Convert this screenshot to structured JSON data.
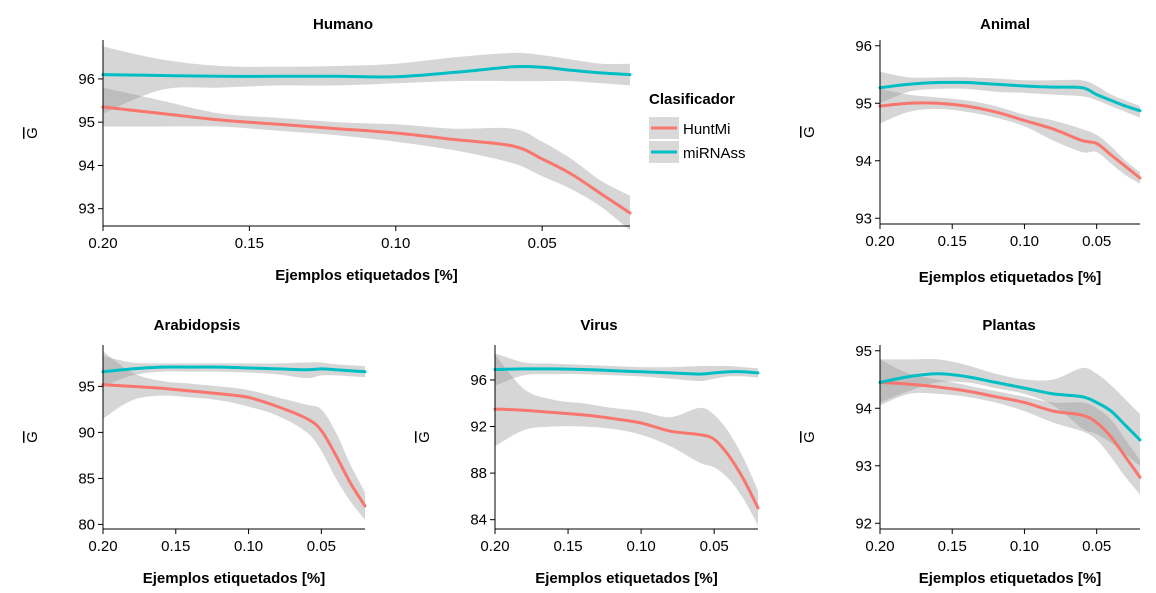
{
  "colors": {
    "HuntMi": "#F8766D",
    "miRNAss": "#00BFC4",
    "band": "#999999"
  },
  "legend": {
    "title": "Clasificador",
    "items": [
      {
        "name": "HuntMi",
        "color": "#F8766D"
      },
      {
        "name": "miRNAss",
        "color": "#00BFC4"
      }
    ]
  },
  "chart_data": [
    {
      "type": "line",
      "title": "Humano",
      "xlabel": "Ejemplos etiquetados [%]",
      "ylabel": "G",
      "xlim": [
        0.2,
        0.02
      ],
      "ylim": [
        92.6,
        96.9
      ],
      "xticks": [
        0.2,
        0.15,
        0.1,
        0.05
      ],
      "xtick_labels": [
        "0.20",
        "0.15",
        "0.10",
        "0.05"
      ],
      "yticks": [
        93,
        94,
        95,
        96
      ],
      "ytick_labels": [
        "93",
        "94",
        "95",
        "96"
      ],
      "x": [
        0.2,
        0.18,
        0.16,
        0.14,
        0.12,
        0.1,
        0.08,
        0.06,
        0.05,
        0.04,
        0.03,
        0.02
      ],
      "series": [
        {
          "name": "HuntMi",
          "values": [
            95.35,
            95.2,
            95.05,
            94.95,
            94.85,
            94.75,
            94.6,
            94.45,
            94.15,
            93.8,
            93.35,
            92.9
          ],
          "lower": [
            94.9,
            94.9,
            94.9,
            94.8,
            94.7,
            94.55,
            94.35,
            94.05,
            93.75,
            93.45,
            93.05,
            92.5
          ],
          "upper": [
            95.8,
            95.5,
            95.2,
            95.1,
            95.0,
            94.95,
            94.85,
            94.85,
            94.55,
            94.15,
            93.65,
            93.3
          ]
        },
        {
          "name": "miRNAss",
          "values": [
            96.1,
            96.08,
            96.06,
            96.06,
            96.06,
            96.05,
            96.15,
            96.28,
            96.27,
            96.2,
            96.14,
            96.1
          ],
          "lower": [
            95.2,
            95.75,
            95.8,
            95.85,
            95.85,
            95.9,
            95.95,
            95.95,
            95.95,
            95.95,
            95.9,
            95.85
          ],
          "upper": [
            96.75,
            96.45,
            96.3,
            96.28,
            96.3,
            96.35,
            96.5,
            96.6,
            96.55,
            96.45,
            96.35,
            96.35
          ]
        }
      ]
    },
    {
      "type": "line",
      "title": "Animal",
      "xlabel": "Ejemplos etiquetados [%]",
      "ylabel": "G",
      "xlim": [
        0.2,
        0.02
      ],
      "ylim": [
        92.9,
        96.1
      ],
      "xticks": [
        0.2,
        0.15,
        0.1,
        0.05
      ],
      "xtick_labels": [
        "0.20",
        "0.15",
        "0.10",
        "0.05"
      ],
      "yticks": [
        93,
        94,
        95,
        96
      ],
      "ytick_labels": [
        "93",
        "94",
        "95",
        "96"
      ],
      "x": [
        0.2,
        0.18,
        0.16,
        0.14,
        0.12,
        0.1,
        0.08,
        0.06,
        0.05,
        0.04,
        0.03,
        0.02
      ],
      "series": [
        {
          "name": "HuntMi",
          "values": [
            94.95,
            95.0,
            95.0,
            94.95,
            94.85,
            94.7,
            94.55,
            94.35,
            94.3,
            94.1,
            93.9,
            93.7
          ],
          "lower": [
            94.65,
            94.85,
            94.9,
            94.85,
            94.75,
            94.6,
            94.35,
            94.15,
            94.15,
            93.95,
            93.75,
            93.6
          ],
          "upper": [
            95.25,
            95.15,
            95.1,
            95.05,
            94.95,
            94.8,
            94.7,
            94.55,
            94.45,
            94.25,
            94.0,
            93.8
          ]
        },
        {
          "name": "miRNAss",
          "values": [
            95.27,
            95.33,
            95.36,
            95.36,
            95.33,
            95.3,
            95.28,
            95.27,
            95.15,
            95.05,
            94.95,
            94.87
          ],
          "lower": [
            95.0,
            95.2,
            95.25,
            95.25,
            95.2,
            95.18,
            95.15,
            95.12,
            95.05,
            94.95,
            94.85,
            94.75
          ],
          "upper": [
            95.55,
            95.45,
            95.45,
            95.45,
            95.43,
            95.4,
            95.4,
            95.4,
            95.3,
            95.15,
            95.05,
            94.95
          ]
        }
      ]
    },
    {
      "type": "line",
      "title": "Arabidopsis",
      "xlabel": "Ejemplos etiquetados [%]",
      "ylabel": "G",
      "xlim": [
        0.2,
        0.02
      ],
      "ylim": [
        79.5,
        99.5
      ],
      "xticks": [
        0.2,
        0.15,
        0.1,
        0.05
      ],
      "xtick_labels": [
        "0.20",
        "0.15",
        "0.10",
        "0.05"
      ],
      "yticks": [
        80,
        85,
        90,
        95
      ],
      "ytick_labels": [
        "80",
        "85",
        "90",
        "95"
      ],
      "x": [
        0.2,
        0.18,
        0.16,
        0.14,
        0.12,
        0.1,
        0.08,
        0.06,
        0.05,
        0.04,
        0.03,
        0.02
      ],
      "series": [
        {
          "name": "HuntMi",
          "values": [
            95.2,
            95.0,
            94.8,
            94.5,
            94.2,
            93.8,
            92.8,
            91.5,
            90.2,
            87.5,
            84.5,
            82.0
          ],
          "lower": [
            91.5,
            93.5,
            94.0,
            93.8,
            93.5,
            92.8,
            91.8,
            90.0,
            88.0,
            85.0,
            82.5,
            80.5
          ],
          "upper": [
            98.8,
            96.5,
            95.6,
            95.3,
            95.0,
            94.6,
            93.8,
            93.0,
            92.5,
            90.0,
            86.5,
            83.5
          ]
        },
        {
          "name": "miRNAss",
          "values": [
            96.6,
            96.9,
            97.1,
            97.1,
            97.1,
            97.0,
            96.9,
            96.8,
            96.9,
            96.8,
            96.7,
            96.6
          ],
          "lower": [
            95.0,
            96.2,
            96.6,
            96.6,
            96.6,
            96.5,
            96.3,
            95.9,
            96.2,
            96.2,
            96.1,
            96.0
          ],
          "upper": [
            98.3,
            97.6,
            97.5,
            97.5,
            97.5,
            97.5,
            97.5,
            97.6,
            97.6,
            97.4,
            97.3,
            97.2
          ]
        }
      ]
    },
    {
      "type": "line",
      "title": "Virus",
      "xlabel": "Ejemplos etiquetados [%]",
      "ylabel": "G",
      "xlim": [
        0.2,
        0.02
      ],
      "ylim": [
        83.2,
        99.0
      ],
      "xticks": [
        0.2,
        0.15,
        0.1,
        0.05
      ],
      "xtick_labels": [
        "0.20",
        "0.15",
        "0.10",
        "0.05"
      ],
      "yticks": [
        84,
        88,
        92,
        96
      ],
      "ytick_labels": [
        "84",
        "88",
        "92",
        "96"
      ],
      "x": [
        0.2,
        0.18,
        0.16,
        0.14,
        0.12,
        0.1,
        0.08,
        0.06,
        0.05,
        0.04,
        0.03,
        0.02
      ],
      "series": [
        {
          "name": "HuntMi",
          "values": [
            93.5,
            93.4,
            93.2,
            93.0,
            92.7,
            92.3,
            91.6,
            91.3,
            90.9,
            89.5,
            87.5,
            85.0
          ],
          "lower": [
            90.3,
            91.7,
            92.0,
            92.0,
            91.8,
            91.3,
            90.3,
            88.9,
            88.5,
            87.5,
            85.8,
            83.5
          ],
          "upper": [
            98.2,
            95.2,
            94.3,
            94.0,
            93.6,
            93.3,
            92.8,
            93.6,
            93.0,
            91.5,
            89.3,
            86.5
          ]
        },
        {
          "name": "miRNAss",
          "values": [
            96.9,
            96.95,
            96.95,
            96.9,
            96.8,
            96.7,
            96.6,
            96.5,
            96.6,
            96.7,
            96.7,
            96.6
          ],
          "lower": [
            95.5,
            96.4,
            96.5,
            96.5,
            96.4,
            96.3,
            96.1,
            95.9,
            96.1,
            96.3,
            96.3,
            96.2
          ],
          "upper": [
            98.3,
            97.5,
            97.4,
            97.3,
            97.2,
            97.1,
            97.1,
            97.2,
            97.2,
            97.2,
            97.1,
            97.0
          ]
        }
      ]
    },
    {
      "type": "line",
      "title": "Plantas",
      "xlabel": "Ejemplos etiquetados [%]",
      "ylabel": "G",
      "xlim": [
        0.2,
        0.02
      ],
      "ylim": [
        91.9,
        95.1
      ],
      "xticks": [
        0.2,
        0.15,
        0.1,
        0.05
      ],
      "xtick_labels": [
        "0.20",
        "0.15",
        "0.10",
        "0.05"
      ],
      "yticks": [
        92,
        93,
        94,
        95
      ],
      "ytick_labels": [
        "92",
        "93",
        "94",
        "95"
      ],
      "x": [
        0.2,
        0.18,
        0.16,
        0.14,
        0.12,
        0.1,
        0.08,
        0.06,
        0.05,
        0.04,
        0.03,
        0.02
      ],
      "series": [
        {
          "name": "HuntMi",
          "values": [
            94.45,
            94.42,
            94.37,
            94.3,
            94.2,
            94.1,
            93.95,
            93.88,
            93.75,
            93.5,
            93.15,
            92.8
          ],
          "lower": [
            94.05,
            94.25,
            94.25,
            94.2,
            94.1,
            93.95,
            93.75,
            93.6,
            93.45,
            93.15,
            92.8,
            92.5
          ],
          "upper": [
            94.85,
            94.6,
            94.5,
            94.4,
            94.3,
            94.2,
            94.1,
            94.1,
            94.0,
            93.8,
            93.45,
            93.1
          ]
        },
        {
          "name": "miRNAss",
          "values": [
            94.45,
            94.55,
            94.6,
            94.55,
            94.45,
            94.35,
            94.25,
            94.2,
            94.1,
            93.95,
            93.7,
            93.45
          ],
          "lower": [
            94.1,
            94.3,
            94.45,
            94.45,
            94.35,
            94.25,
            94.05,
            93.65,
            93.55,
            93.4,
            93.2,
            93.0
          ],
          "upper": [
            94.85,
            94.85,
            94.85,
            94.75,
            94.6,
            94.5,
            94.5,
            94.7,
            94.6,
            94.4,
            94.15,
            93.9
          ]
        }
      ]
    }
  ]
}
